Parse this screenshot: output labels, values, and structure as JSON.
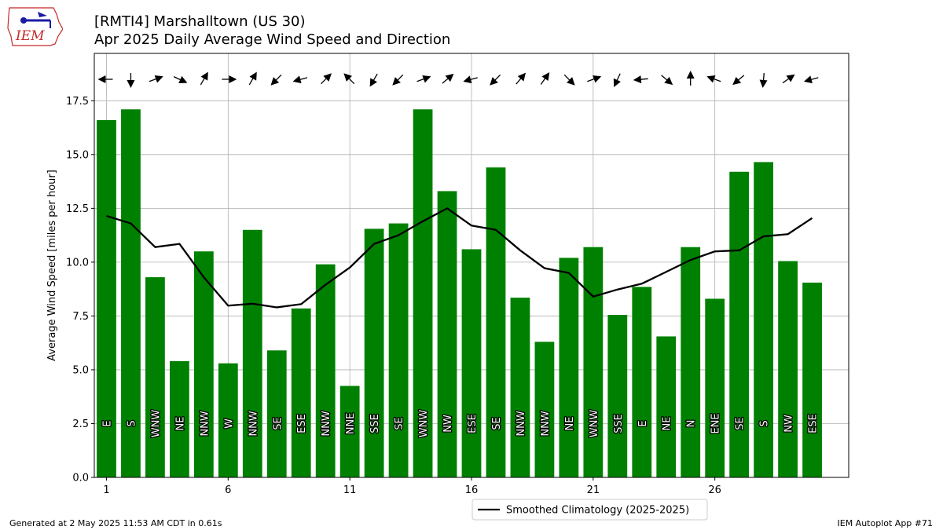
{
  "header": {
    "title": "[RMTI4] Marshalltown (US 30)",
    "subtitle": "Apr 2025 Daily Average Wind Speed and Direction",
    "logo_text": "IEM"
  },
  "footer": {
    "generated": "Generated at 2 May 2025 11:53 AM CDT in 0.61s",
    "app": "IEM Autoplot App #71"
  },
  "colors": {
    "bar": "#008000",
    "line": "#000000",
    "grid": "#b0b0b0",
    "logo": "#c62828",
    "logo_accent": "#1a1aa8"
  },
  "chart_data": {
    "type": "bar",
    "ylabel": "Average Wind Speed [miles per hour]",
    "xlim": [
      0.5,
      31.5
    ],
    "ylim": [
      0,
      19.7
    ],
    "yticks": [
      0.0,
      2.5,
      5.0,
      7.5,
      10.0,
      12.5,
      15.0,
      17.5
    ],
    "ytick_labels": [
      "0.0",
      "2.5",
      "5.0",
      "7.5",
      "10.0",
      "12.5",
      "15.0",
      "17.5"
    ],
    "xticks": [
      1,
      6,
      11,
      16,
      21,
      26
    ],
    "xtick_labels": [
      "1",
      "6",
      "11",
      "16",
      "21",
      "26"
    ],
    "grid": true,
    "legend_position": "bottom-center",
    "days": [
      1,
      2,
      3,
      4,
      5,
      6,
      7,
      8,
      9,
      10,
      11,
      12,
      13,
      14,
      15,
      16,
      17,
      18,
      19,
      20,
      21,
      22,
      23,
      24,
      25,
      26,
      27,
      28,
      29,
      30
    ],
    "values": [
      16.6,
      17.1,
      9.3,
      5.4,
      10.5,
      5.3,
      11.5,
      5.9,
      7.85,
      9.9,
      4.25,
      11.55,
      11.8,
      17.1,
      13.3,
      10.6,
      14.4,
      8.35,
      6.3,
      10.2,
      10.7,
      7.55,
      8.85,
      6.55,
      10.7,
      8.3,
      14.2,
      14.65,
      10.05,
      9.05
    ],
    "directions": [
      "E",
      "S",
      "WNW",
      "NE",
      "NNW",
      "W",
      "NNW",
      "SE",
      "ESE",
      "NNW",
      "NNE",
      "SSE",
      "SE",
      "WNW",
      "NW",
      "ESE",
      "SE",
      "NNW",
      "NNW",
      "NE",
      "WNW",
      "SSE",
      "E",
      "NE",
      "N",
      "ENE",
      "SE",
      "S",
      "NW",
      "ESE"
    ],
    "arrow_angles_deg": [
      180,
      90,
      340,
      25,
      300,
      0,
      300,
      135,
      165,
      315,
      225,
      120,
      135,
      340,
      320,
      165,
      135,
      310,
      305,
      45,
      340,
      115,
      175,
      40,
      270,
      200,
      140,
      95,
      325,
      165
    ],
    "series": [
      {
        "name": "Smoothed Climatology (2025-2025)",
        "type": "line",
        "values": [
          12.15,
          11.8,
          10.7,
          10.85,
          9.3,
          7.98,
          8.07,
          7.9,
          8.05,
          8.95,
          9.75,
          10.85,
          11.25,
          11.9,
          12.5,
          11.7,
          11.5,
          10.55,
          9.72,
          9.5,
          8.4,
          8.73,
          9.0,
          9.55,
          10.1,
          10.5,
          10.55,
          11.2,
          11.3,
          12.05
        ]
      }
    ]
  }
}
